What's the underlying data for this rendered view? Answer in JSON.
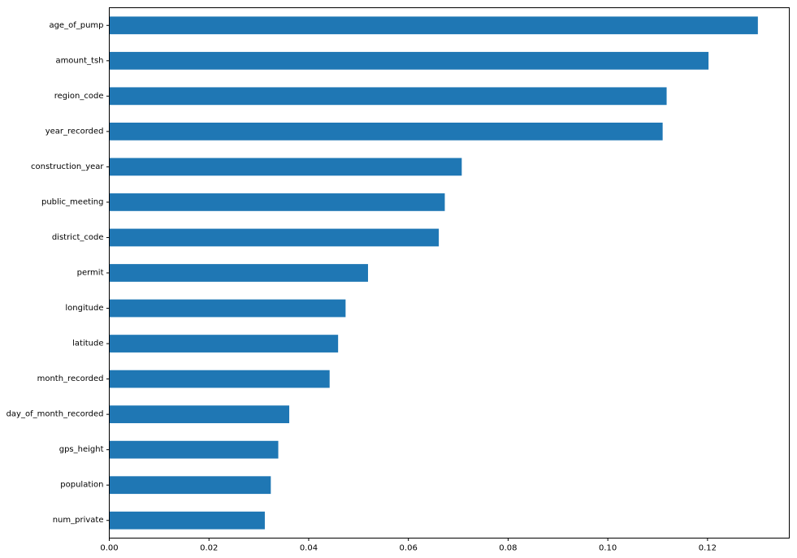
{
  "chart_data": {
    "type": "bar",
    "orientation": "horizontal",
    "title": "",
    "xlabel": "",
    "ylabel": "",
    "categories": [
      "age_of_pump",
      "amount_tsh",
      "region_code",
      "year_recorded",
      "construction_year",
      "public_meeting",
      "district_code",
      "permit",
      "longitude",
      "latitude",
      "month_recorded",
      "day_of_month_recorded",
      "gps_height",
      "population",
      "num_private"
    ],
    "values": [
      0.1301,
      0.1202,
      0.1118,
      0.111,
      0.0707,
      0.0673,
      0.0661,
      0.0519,
      0.0474,
      0.0459,
      0.0442,
      0.0361,
      0.0339,
      0.0324,
      0.0312
    ],
    "xlim": [
      0,
      0.1364
    ],
    "xticks": [
      0.0,
      0.02,
      0.04,
      0.06,
      0.08,
      0.1,
      0.12
    ],
    "xtick_labels": [
      "0.00",
      "0.02",
      "0.04",
      "0.06",
      "0.08",
      "0.10",
      "0.12"
    ],
    "grid": false,
    "legend": "none",
    "colors": {
      "bar": "#1f77b4",
      "axis": "#000000"
    }
  }
}
